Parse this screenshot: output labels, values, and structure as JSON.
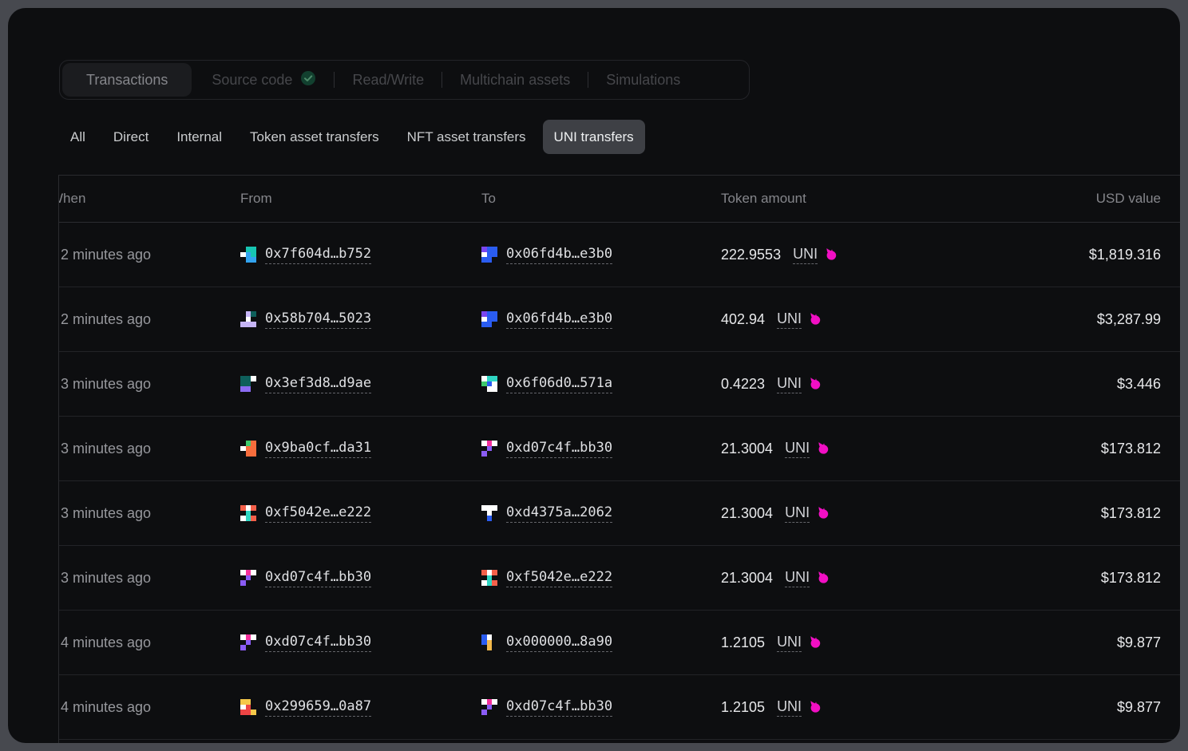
{
  "tab_bar": {
    "tabs": [
      {
        "label": "Transactions",
        "selected": true
      },
      {
        "label": "Source code",
        "verified": true
      },
      {
        "label": "Read/Write"
      },
      {
        "label": "Multichain assets"
      },
      {
        "label": "Simulations"
      }
    ]
  },
  "filter_bar": {
    "items": [
      {
        "label": "All"
      },
      {
        "label": "Direct"
      },
      {
        "label": "Internal"
      },
      {
        "label": "Token asset transfers"
      },
      {
        "label": "NFT asset transfers"
      },
      {
        "label": "UNI transfers",
        "selected": true
      }
    ]
  },
  "table": {
    "columns": {
      "when": "When",
      "from": "From",
      "to": "To",
      "token_amount": "Token amount",
      "usd_value": "USD value"
    },
    "rows": [
      {
        "when": "2 minutes ago",
        "from_hash": "0x7f604d…b752",
        "from_avatar": "a_7f604d",
        "to_hash": "0x06fd4b…e3b0",
        "to_avatar": "a_06fd4b",
        "amount": "222.9553",
        "token": "UNI",
        "usd": "$1,819.316"
      },
      {
        "when": "2 minutes ago",
        "from_hash": "0x58b704…5023",
        "from_avatar": "a_58b704",
        "to_hash": "0x06fd4b…e3b0",
        "to_avatar": "a_06fd4b",
        "amount": "402.94",
        "token": "UNI",
        "usd": "$3,287.99"
      },
      {
        "when": "3 minutes ago",
        "from_hash": "0x3ef3d8…d9ae",
        "from_avatar": "a_3ef3d8",
        "to_hash": "0x6f06d0…571a",
        "to_avatar": "a_6f06d0",
        "amount": "0.4223",
        "token": "UNI",
        "usd": "$3.446"
      },
      {
        "when": "3 minutes ago",
        "from_hash": "0x9ba0cf…da31",
        "from_avatar": "a_9ba0cf",
        "to_hash": "0xd07c4f…bb30",
        "to_avatar": "a_d07c4f",
        "amount": "21.3004",
        "token": "UNI",
        "usd": "$173.812"
      },
      {
        "when": "3 minutes ago",
        "from_hash": "0xf5042e…e222",
        "from_avatar": "a_f5042e",
        "to_hash": "0xd4375a…2062",
        "to_avatar": "a_d4375a",
        "amount": "21.3004",
        "token": "UNI",
        "usd": "$173.812"
      },
      {
        "when": "3 minutes ago",
        "from_hash": "0xd07c4f…bb30",
        "from_avatar": "a_d07c4f",
        "to_hash": "0xf5042e…e222",
        "to_avatar": "a_f5042e",
        "amount": "21.3004",
        "token": "UNI",
        "usd": "$173.812"
      },
      {
        "when": "4 minutes ago",
        "from_hash": "0xd07c4f…bb30",
        "from_avatar": "a_d07c4f",
        "to_hash": "0x000000…8a90",
        "to_avatar": "a_000000",
        "amount": "1.2105",
        "token": "UNI",
        "usd": "$9.877"
      },
      {
        "when": "4 minutes ago",
        "from_hash": "0x299659…0a87",
        "from_avatar": "a_299659",
        "to_hash": "0xd07c4f…bb30",
        "to_avatar": "a_d07c4f",
        "amount": "1.2105",
        "token": "UNI",
        "usd": "$9.877"
      }
    ]
  },
  "avatars": {
    "a_7f604d": [
      null,
      "#17c5b2",
      "#17c5b2",
      "#ffffff",
      "#32a3ef",
      "#17c5b2",
      null,
      "#32a3ef",
      "#32a3ef"
    ],
    "a_06fd4b": [
      "#7b46f0",
      "#2a5cf0",
      "#2a5cf0",
      "#ffffff",
      "#2a5cf0",
      "#2a5cf0",
      "#2a5cf0",
      "#2a5cf0",
      null
    ],
    "a_58b704": [
      null,
      "#c6b5f6",
      "#0e5f5b",
      null,
      "#ffffff",
      null,
      "#c6b5f6",
      "#c6b5f6",
      "#c6b5f6"
    ],
    "a_3ef3d8": [
      "#0e5f5b",
      "#0e5f5b",
      "#ffffff",
      "#0e5f5b",
      "#0e5f5b",
      null,
      "#8b6cf3",
      "#8b6cf3",
      null
    ],
    "a_6f06d0": [
      "#ffffff",
      "#2fd6c3",
      "#2fd6c3",
      "#3fca6c",
      "#2a5cf0",
      "#ffffff",
      null,
      "#ffffff",
      "#ffffff"
    ],
    "a_9ba0cf": [
      null,
      "#3fca6c",
      "#f76d3c",
      "#ffffff",
      "#f76d3c",
      "#f76d3c",
      null,
      "#f76d3c",
      "#f76d3c"
    ],
    "a_d07c4f": [
      "#ffffff",
      "#f5309b",
      "#ffffff",
      null,
      "#8b5cf6",
      null,
      "#8b5cf6",
      null,
      null
    ],
    "a_f5042e": [
      "#f4604a",
      "#ffffff",
      "#f4604a",
      null,
      "#2fd6c3",
      null,
      "#ffffff",
      "#2fd6c3",
      "#f4604a"
    ],
    "a_d4375a": [
      "#ffffff",
      "#ffffff",
      "#ffffff",
      null,
      "#ffffff",
      null,
      null,
      "#2a5cf0",
      null
    ],
    "a_000000": [
      "#2a5cf0",
      "#ffffff",
      null,
      "#2a5cf0",
      "#f2b84a",
      null,
      null,
      "#f2b84a",
      null
    ],
    "a_299659": [
      "#f5c84a",
      "#f5c84a",
      null,
      "#ffffff",
      "#ee4545",
      null,
      "#ee4545",
      "#ee4545",
      "#f5c84a"
    ]
  },
  "icons": {
    "verified": "check-circle-icon",
    "token": "uniswap-unicorn-icon"
  },
  "colors": {
    "unicorn_pink": "#f20fc4",
    "verified_circle": "#12402f",
    "verified_check": "#4d8a69",
    "selected_chip": "#3e4045",
    "window_bg": "#0d0e10",
    "page_bg": "#47494f"
  }
}
